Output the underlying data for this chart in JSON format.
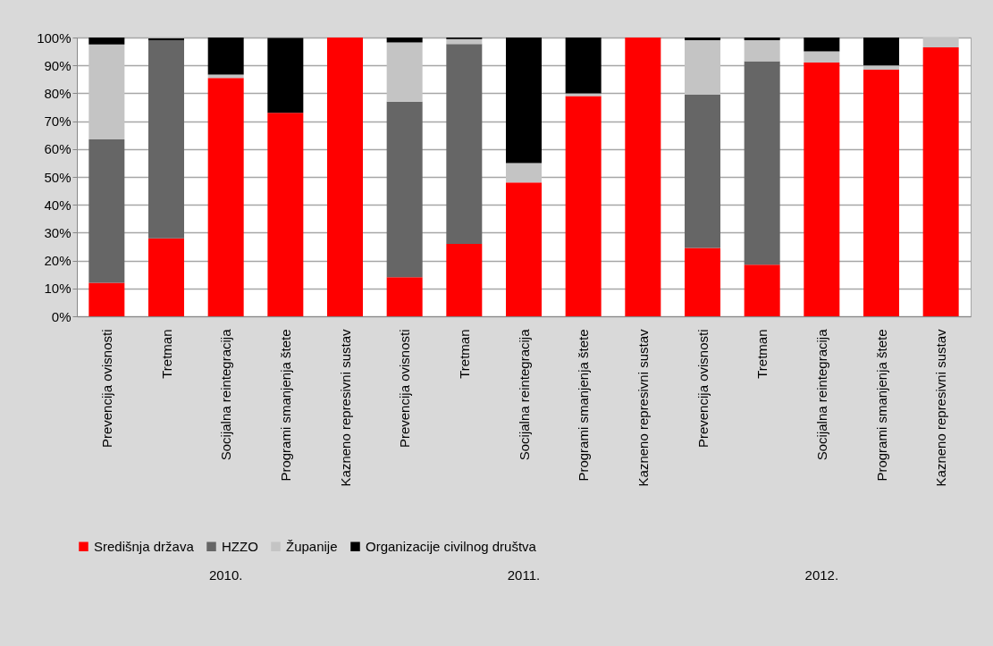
{
  "chart_data": {
    "type": "bar",
    "stacked": true,
    "categories": [
      "Prevencija ovisnosti",
      "Tretman",
      "Socijalna reintegracija",
      "Programi smanjenja štete",
      "Kazneno represivni sustav",
      "Prevencija ovisnosti",
      "Tretman",
      "Socijalna reintegracija",
      "Programi smanjenja štete",
      "Kazneno represivni sustav",
      "Prevencija ovisnosti",
      "Tretman",
      "Socijalna reintegracija",
      "Programi smanjenja štete",
      "Kazneno represivni sustav"
    ],
    "series": [
      {
        "name": "Središnja država",
        "color": "#ff0000",
        "values": [
          12,
          28,
          85.5,
          73,
          100,
          14,
          26,
          48,
          79,
          100,
          24.5,
          18.5,
          91,
          88.5,
          96.5
        ]
      },
      {
        "name": "HZZO",
        "color": "#666666",
        "values": [
          51.5,
          71,
          0,
          0,
          0,
          63,
          71.7,
          0,
          0,
          0,
          55,
          73,
          0,
          0,
          0
        ]
      },
      {
        "name": "Županije",
        "color": "#c4c4c4",
        "values": [
          34,
          null,
          1.2,
          null,
          0,
          21.2,
          1.7,
          7,
          1,
          0,
          19.5,
          7.5,
          4,
          1.5,
          3.5
        ]
      },
      {
        "name": "Organizacije civilnog društva",
        "color": "#000000",
        "values": [
          2.5,
          0.7,
          13.3,
          26.8,
          0,
          1.8,
          0.6,
          45,
          20,
          0,
          1,
          1,
          5,
          10,
          0
        ]
      }
    ],
    "ylim": [
      0,
      100
    ],
    "yticks": [
      {
        "value": 0,
        "label": "0%"
      },
      {
        "value": 10,
        "label": "10%"
      },
      {
        "value": 20,
        "label": "20%"
      },
      {
        "value": 30,
        "label": "30%"
      },
      {
        "value": 40,
        "label": "40%"
      },
      {
        "value": 50,
        "label": "50%"
      },
      {
        "value": 60,
        "label": "60%"
      },
      {
        "value": 70,
        "label": "70%"
      },
      {
        "value": 80,
        "label": "80%"
      },
      {
        "value": 90,
        "label": "90%"
      },
      {
        "value": 100,
        "label": "100%"
      }
    ],
    "grid": "y",
    "legend": "bottom",
    "annotations": [
      "2010.",
      "2011.",
      "2012."
    ]
  }
}
